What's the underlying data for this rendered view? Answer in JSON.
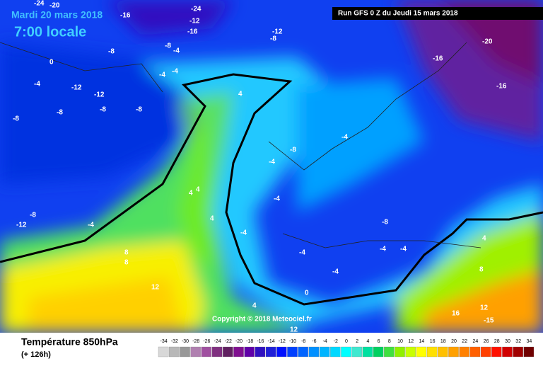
{
  "header": {
    "date": "Mardi 20 mars 2018",
    "time": "7:00 locale",
    "run": "Run GFS 0 Z du Jeudi 15 mars 2018"
  },
  "copyright": "Copyright © 2018 Meteociel.fr",
  "footer": {
    "title": "Température 850hPa",
    "lead": "(+ 126h)"
  },
  "legend": {
    "values": [
      -34,
      -32,
      -30,
      -28,
      -26,
      -24,
      -22,
      -20,
      -18,
      -16,
      -14,
      -12,
      -10,
      -8,
      -6,
      -4,
      -2,
      0,
      2,
      4,
      6,
      8,
      10,
      12,
      14,
      16,
      18,
      20,
      22,
      24,
      26,
      28,
      30,
      32,
      34
    ],
    "colors": [
      "#d8d8d8",
      "#b8b8b8",
      "#989898",
      "#b080b0",
      "#a050a0",
      "#803080",
      "#602060",
      "#801090",
      "#6000a8",
      "#3010c0",
      "#2020d8",
      "#0010ff",
      "#0040ff",
      "#0064ff",
      "#0090ff",
      "#00b4ff",
      "#00d8ff",
      "#00ffff",
      "#40e8d0",
      "#00e0a0",
      "#00d060",
      "#40e040",
      "#90f000",
      "#c8ff00",
      "#ffff00",
      "#ffe000",
      "#ffc000",
      "#ffa000",
      "#ff8000",
      "#ff6000",
      "#ff4000",
      "#ff1000",
      "#d00000",
      "#a00000",
      "#700000"
    ]
  },
  "map_labels": [
    "-24",
    "-20",
    "-16",
    "-24",
    "-12",
    "-16",
    "-12",
    "-8",
    "-16",
    "-20",
    "-16",
    "-8",
    "-8",
    "-4",
    "-4",
    "-12",
    "-12",
    "-8",
    "-8",
    "-8",
    "4",
    "-4",
    "-4",
    "0",
    "4",
    "4",
    "-4",
    "-8",
    "-8",
    "-12",
    "-4",
    "-8",
    "4",
    "-4",
    "-4",
    "-8",
    "-4",
    "-4",
    "-4",
    "-4",
    "-4",
    "0",
    "8",
    "8",
    "12",
    "4",
    "12",
    "16",
    "12",
    "-15",
    "8",
    "4"
  ]
}
